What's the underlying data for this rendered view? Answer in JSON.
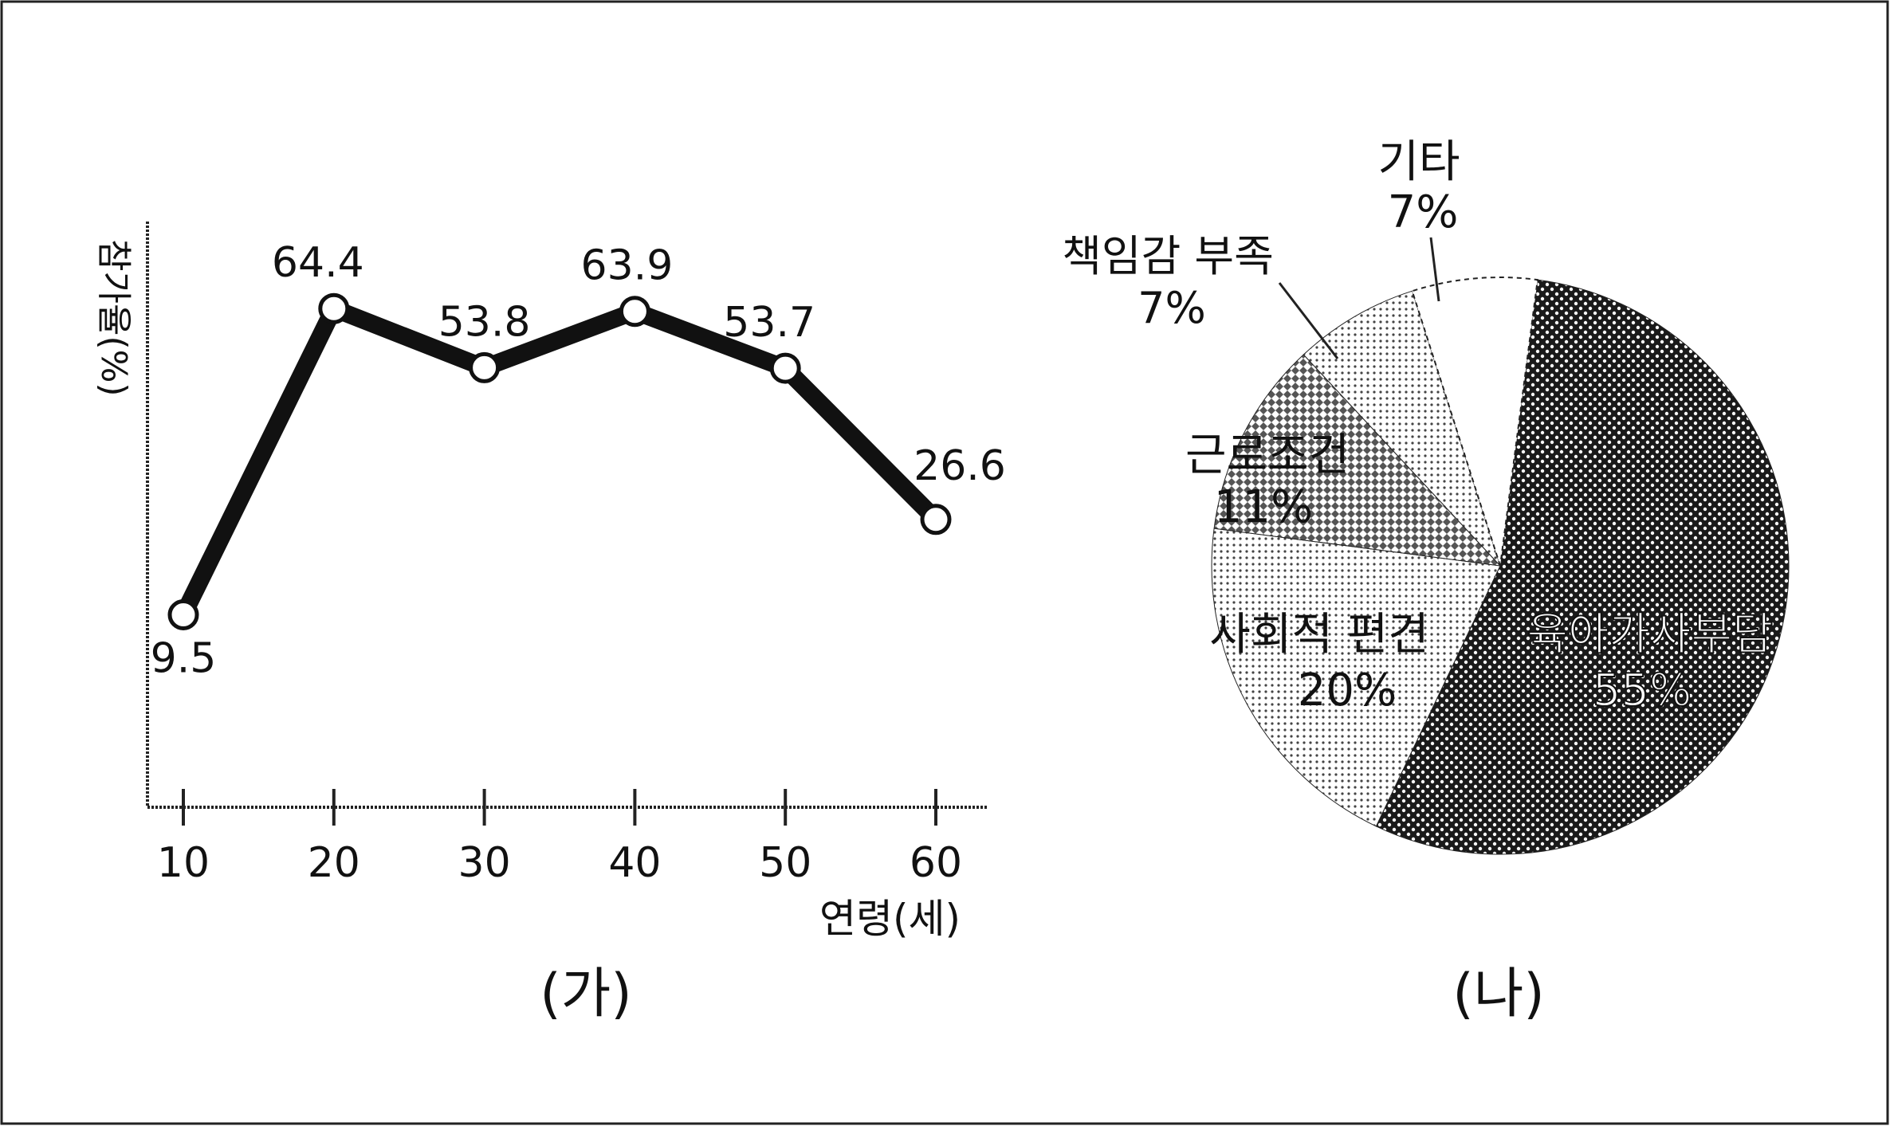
{
  "colors": {
    "border": "#222222",
    "line": "#111111",
    "marker_fill": "#ffffff",
    "axis": "#222222",
    "text": "#111111",
    "pattern_dark": "#1a1a1a"
  },
  "chart_data": [
    {
      "type": "line",
      "caption": "(가)",
      "ylabel": "참가율(%)",
      "xlabel": "연령(세)",
      "x": [
        10,
        20,
        30,
        40,
        50,
        60
      ],
      "xticks": [
        "10",
        "20",
        "30",
        "40",
        "50",
        "60"
      ],
      "values": [
        9.5,
        64.4,
        53.8,
        63.9,
        53.7,
        26.6
      ],
      "data_labels": [
        "9.5",
        "64.4",
        "53.8",
        "63.9",
        "53.7",
        "26.6"
      ],
      "ylim": [
        -25,
        80
      ],
      "grid": false
    },
    {
      "type": "pie",
      "caption": "(나)",
      "slices": [
        {
          "label": "육아가사부담",
          "value": 55,
          "value_label": "55%",
          "pattern": "dark"
        },
        {
          "label": "사회적 편견",
          "value": 20,
          "value_label": "20%",
          "pattern": "light"
        },
        {
          "label": "근로조건",
          "value": 11,
          "value_label": "11%",
          "pattern": "medium"
        },
        {
          "label": "책임감 부족",
          "value": 7,
          "value_label": "7%",
          "pattern": "light"
        },
        {
          "label": "기타",
          "value": 7,
          "value_label": "7%",
          "pattern": "none"
        }
      ]
    }
  ]
}
